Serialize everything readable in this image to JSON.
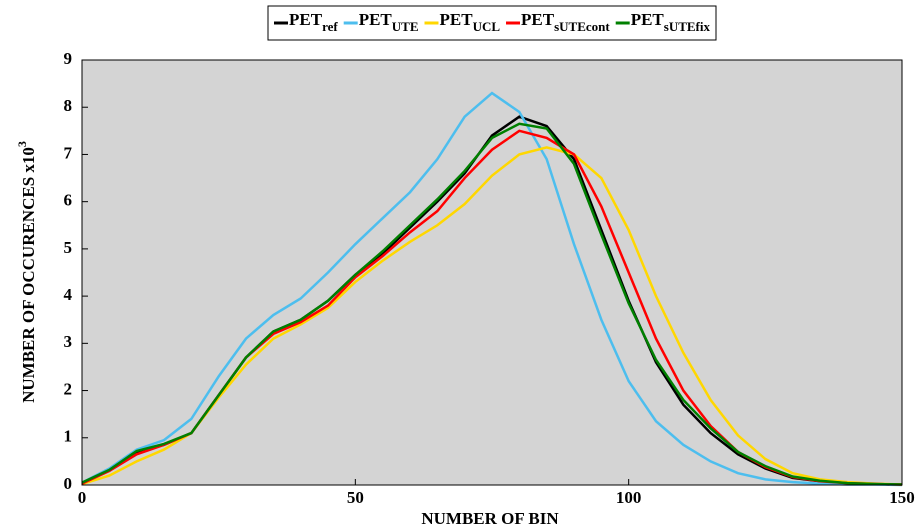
{
  "chart_data": {
    "type": "line",
    "xlabel": "NUMBER OF BIN",
    "ylabel": "NUMBER OF OCCURENCES x10",
    "ylabel_sup": "3",
    "x": [
      0,
      5,
      10,
      15,
      20,
      25,
      30,
      35,
      40,
      45,
      50,
      55,
      60,
      65,
      70,
      75,
      80,
      85,
      90,
      95,
      100,
      105,
      110,
      115,
      120,
      125,
      130,
      135,
      140,
      145,
      150
    ],
    "series": [
      {
        "name": "PET",
        "name_sub": "ref",
        "color": "#000000",
        "values": [
          0.05,
          0.3,
          0.7,
          0.85,
          1.1,
          1.9,
          2.7,
          3.25,
          3.5,
          3.9,
          4.45,
          4.9,
          5.45,
          6.0,
          6.6,
          7.4,
          7.8,
          7.6,
          6.9,
          5.4,
          3.9,
          2.6,
          1.7,
          1.1,
          0.65,
          0.35,
          0.15,
          0.08,
          0.04,
          0.02,
          0.01
        ]
      },
      {
        "name": "PET",
        "name_sub": "UTE",
        "color": "#4dbeee",
        "values": [
          0.05,
          0.35,
          0.75,
          0.95,
          1.4,
          2.3,
          3.1,
          3.6,
          3.95,
          4.5,
          5.1,
          5.65,
          6.2,
          6.9,
          7.8,
          8.3,
          7.9,
          6.9,
          5.1,
          3.5,
          2.2,
          1.35,
          0.85,
          0.5,
          0.25,
          0.12,
          0.06,
          0.03,
          0.01,
          0.01,
          0
        ]
      },
      {
        "name": "PET",
        "name_sub": "UCL",
        "color": "#ffd700",
        "values": [
          0.02,
          0.2,
          0.5,
          0.75,
          1.1,
          1.85,
          2.55,
          3.1,
          3.4,
          3.75,
          4.3,
          4.75,
          5.15,
          5.5,
          5.95,
          6.55,
          7.0,
          7.15,
          7.0,
          6.5,
          5.4,
          4.0,
          2.8,
          1.8,
          1.05,
          0.55,
          0.25,
          0.12,
          0.06,
          0.03,
          0.01
        ]
      },
      {
        "name": "PET",
        "name_sub": "sUTEcont",
        "color": "#ff0000",
        "values": [
          0.03,
          0.3,
          0.65,
          0.85,
          1.1,
          1.9,
          2.7,
          3.2,
          3.45,
          3.8,
          4.4,
          4.85,
          5.35,
          5.8,
          6.5,
          7.1,
          7.5,
          7.35,
          7.0,
          5.9,
          4.5,
          3.1,
          2.0,
          1.25,
          0.7,
          0.38,
          0.17,
          0.08,
          0.04,
          0.02,
          0.01
        ]
      },
      {
        "name": "PET",
        "name_sub": "sUTEfix",
        "color": "#008000",
        "values": [
          0.05,
          0.32,
          0.72,
          0.87,
          1.1,
          1.9,
          2.7,
          3.25,
          3.5,
          3.9,
          4.45,
          4.95,
          5.5,
          6.05,
          6.65,
          7.35,
          7.65,
          7.55,
          6.8,
          5.3,
          3.85,
          2.65,
          1.8,
          1.2,
          0.7,
          0.4,
          0.18,
          0.09,
          0.04,
          0.02,
          0.01
        ]
      }
    ],
    "xlim": [
      0,
      150
    ],
    "xticks": [
      0,
      50,
      100,
      150
    ],
    "ylim": [
      0,
      9
    ],
    "yticks": [
      0,
      1,
      2,
      3,
      4,
      5,
      6,
      7,
      8,
      9
    ],
    "background": "#d4d4d4"
  }
}
